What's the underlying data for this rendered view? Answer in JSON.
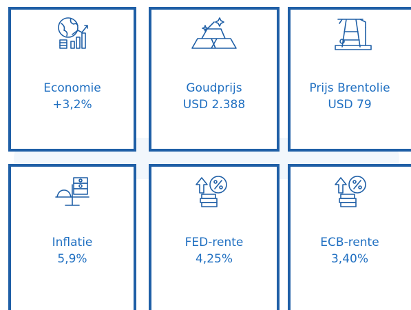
{
  "tiles": [
    {
      "label": "Economie",
      "value": "+3,2%"
    },
    {
      "label": "Goudprijs",
      "value": "USD 2.388"
    },
    {
      "label": "Prijs Brentolie",
      "value": "USD 79"
    },
    {
      "label": "Inflatie",
      "value": "5,9%"
    },
    {
      "label": "FED-rente",
      "value": "4,25%"
    },
    {
      "label": "ECB-rente",
      "value": "3,40%"
    }
  ]
}
